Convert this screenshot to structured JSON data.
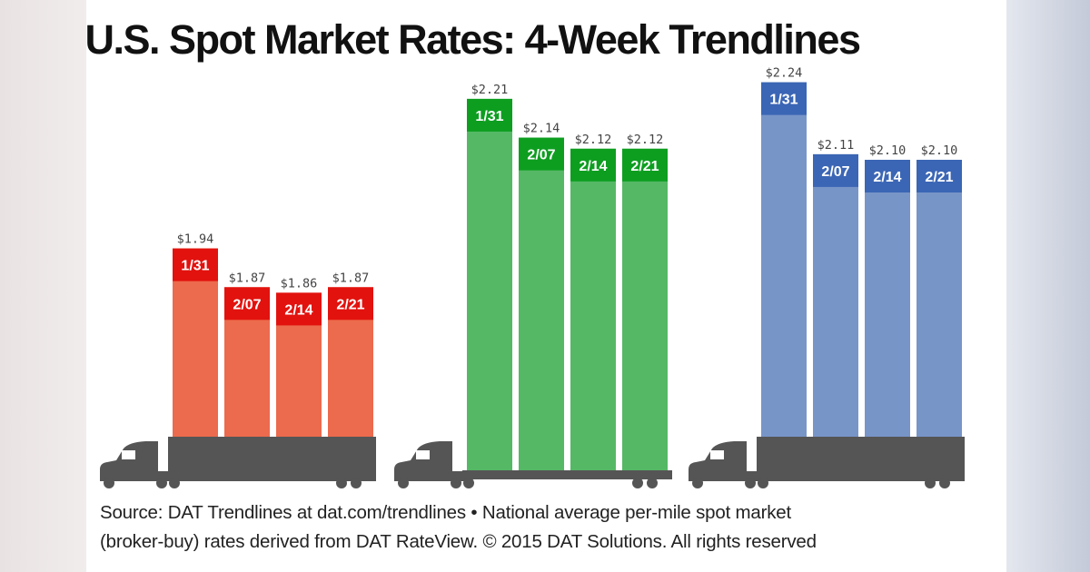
{
  "chart_data": {
    "type": "bar",
    "title": "U.S. Spot Market Rates: 4-Week Trendlines",
    "categories": [
      "1/31",
      "2/07",
      "2/14",
      "2/21"
    ],
    "series": [
      {
        "values": [
          1.94,
          1.87,
          1.86,
          1.87
        ],
        "labels": [
          "$1.94",
          "$1.87",
          "$1.86",
          "$1.87"
        ],
        "color": "#ec6a4d",
        "band_color": "#e2120e",
        "truck": "van"
      },
      {
        "values": [
          2.21,
          2.14,
          2.12,
          2.12
        ],
        "labels": [
          "$2.21",
          "$2.14",
          "$2.12",
          "$2.12"
        ],
        "color": "#55b865",
        "band_color": "#0d9e20",
        "truck": "flatbed"
      },
      {
        "values": [
          2.24,
          2.11,
          2.1,
          2.1
        ],
        "labels": [
          "$2.24",
          "$2.11",
          "$2.10",
          "$2.10"
        ],
        "color": "#7895c8",
        "band_color": "#3b66b5",
        "truck": "van"
      }
    ],
    "grid": false,
    "truck_color": "#555555"
  },
  "footer": {
    "line1": "Source: DAT Trendlines at dat.com/trendlines • National average per-mile spot market",
    "line2": "(broker-buy) rates derived from DAT RateView. © 2015 DAT Solutions. All rights reserved"
  }
}
